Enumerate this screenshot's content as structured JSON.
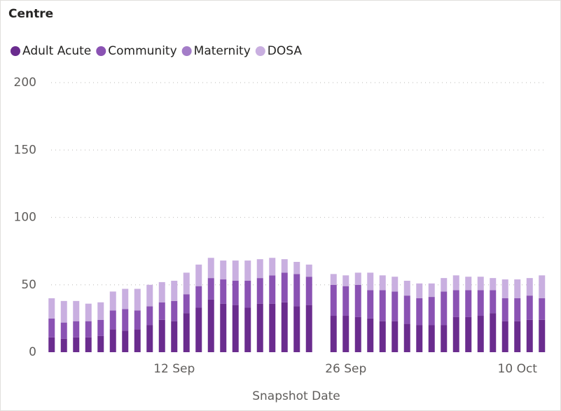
{
  "chart_data": {
    "type": "stacked_bar",
    "legend_title": "Centre",
    "x_label": "Snapshot Date",
    "categories": [
      null,
      null,
      null,
      null,
      null,
      null,
      null,
      null,
      null,
      null,
      "12 Sep",
      null,
      null,
      null,
      null,
      null,
      null,
      null,
      null,
      null,
      null,
      null,
      null,
      null,
      "26 Sep",
      null,
      null,
      null,
      null,
      null,
      null,
      null,
      null,
      null,
      null,
      null,
      null,
      null,
      "10 Oct",
      null,
      null
    ],
    "series": [
      {
        "name": "Adult Acute",
        "color": "#6a2c8e",
        "values": [
          11,
          10,
          11,
          11,
          12,
          17,
          16,
          17,
          20,
          24,
          23,
          29,
          33,
          39,
          36,
          35,
          33,
          36,
          36,
          37,
          34,
          35,
          null,
          27,
          27,
          26,
          25,
          23,
          23,
          21,
          20,
          20,
          20,
          26,
          26,
          27,
          29,
          23,
          23,
          24,
          24
        ]
      },
      {
        "name": "Community",
        "color": "#8a52b3",
        "values": [
          14,
          12,
          12,
          12,
          12,
          14,
          16,
          14,
          14,
          13,
          15,
          14,
          16,
          16,
          18,
          18,
          20,
          19,
          21,
          22,
          24,
          21,
          null,
          23,
          22,
          24,
          21,
          23,
          22,
          21,
          20,
          21,
          25,
          20,
          20,
          19,
          17,
          17,
          17,
          18,
          16
        ]
      },
      {
        "name": "Maternity",
        "color": "#a47dc8",
        "values": [
          0,
          0,
          0,
          0,
          0,
          0,
          0,
          0,
          0,
          0,
          0,
          0,
          0,
          0,
          0,
          0,
          0,
          0,
          0,
          0,
          0,
          0,
          null,
          0,
          0,
          0,
          0,
          0,
          0,
          0,
          0,
          0,
          0,
          0,
          0,
          0,
          0,
          0,
          0,
          0,
          0
        ]
      },
      {
        "name": "DOSA",
        "color": "#c9afe0",
        "values": [
          15,
          16,
          15,
          13,
          13,
          14,
          15,
          16,
          16,
          15,
          15,
          16,
          16,
          15,
          14,
          15,
          15,
          14,
          13,
          10,
          9,
          9,
          null,
          8,
          8,
          9,
          13,
          11,
          11,
          11,
          11,
          10,
          10,
          11,
          10,
          10,
          9,
          14,
          14,
          13,
          17
        ]
      }
    ],
    "ylim": [
      0,
      200
    ],
    "yticks": [
      0,
      50,
      100,
      150,
      200
    ],
    "grid": true,
    "legend": "top-left"
  }
}
